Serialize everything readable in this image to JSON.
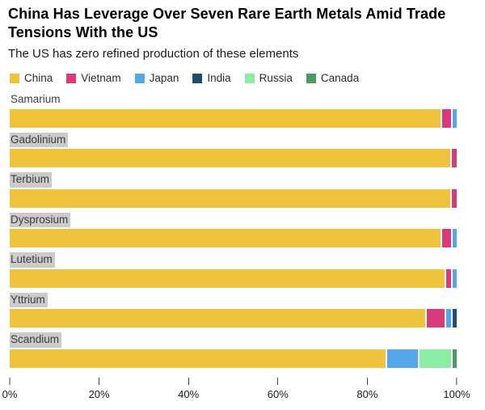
{
  "header": {
    "title": "China Has Leverage Over Seven Rare Earth Metals Amid Trade Tensions With the US",
    "subtitle": "The US has zero refined production of these elements"
  },
  "legend": [
    {
      "label": "China",
      "color": "#F0C33C"
    },
    {
      "label": "Vietnam",
      "color": "#D93A7C"
    },
    {
      "label": "Japan",
      "color": "#54A7E9"
    },
    {
      "label": "India",
      "color": "#1F4E6E"
    },
    {
      "label": "Russia",
      "color": "#8AEDA3"
    },
    {
      "label": "Canada",
      "color": "#4C9C62"
    }
  ],
  "style": {
    "label_highlight_color": "#CBCBCB",
    "background": "#FFFFFF"
  },
  "chart_data": {
    "type": "bar",
    "orientation": "horizontal",
    "stacked": true,
    "unit": "percent",
    "title": "China Has Leverage Over Seven Rare Earth Metals Amid Trade Tensions With the US",
    "subtitle": "The US has zero refined production of these elements",
    "categories": [
      "Samarium",
      "Gadolinium",
      "Terbium",
      "Dysprosium",
      "Lutetium",
      "Yttrium",
      "Scandium"
    ],
    "series": [
      {
        "name": "China",
        "color": "#F0C33C",
        "values": [
          97,
          99,
          99,
          97,
          98,
          94,
          85
        ]
      },
      {
        "name": "Vietnam",
        "color": "#D93A7C",
        "values": [
          2,
          1,
          1,
          2,
          1,
          4,
          0
        ]
      },
      {
        "name": "Japan",
        "color": "#54A7E9",
        "values": [
          1,
          0,
          0,
          1,
          1,
          1,
          7
        ]
      },
      {
        "name": "India",
        "color": "#1F4E6E",
        "values": [
          0,
          0,
          0,
          0,
          0,
          1,
          0
        ]
      },
      {
        "name": "Russia",
        "color": "#8AEDA3",
        "values": [
          0,
          0,
          0,
          0,
          0,
          0,
          7
        ]
      },
      {
        "name": "Canada",
        "color": "#4C9C62",
        "values": [
          0,
          0,
          0,
          0,
          0,
          0,
          1
        ]
      }
    ],
    "x_axis": {
      "tick_labels": [
        "0%",
        "20%",
        "40%",
        "60%",
        "80%",
        "100%"
      ],
      "tick_values": [
        0,
        20,
        40,
        60,
        80,
        100
      ],
      "range": [
        0,
        100
      ]
    },
    "grid": false,
    "legend_position": "top",
    "highlighted_labels": [
      "Gadolinium",
      "Terbium",
      "Dysprosium",
      "Lutetium",
      "Yttrium",
      "Scandium"
    ]
  }
}
